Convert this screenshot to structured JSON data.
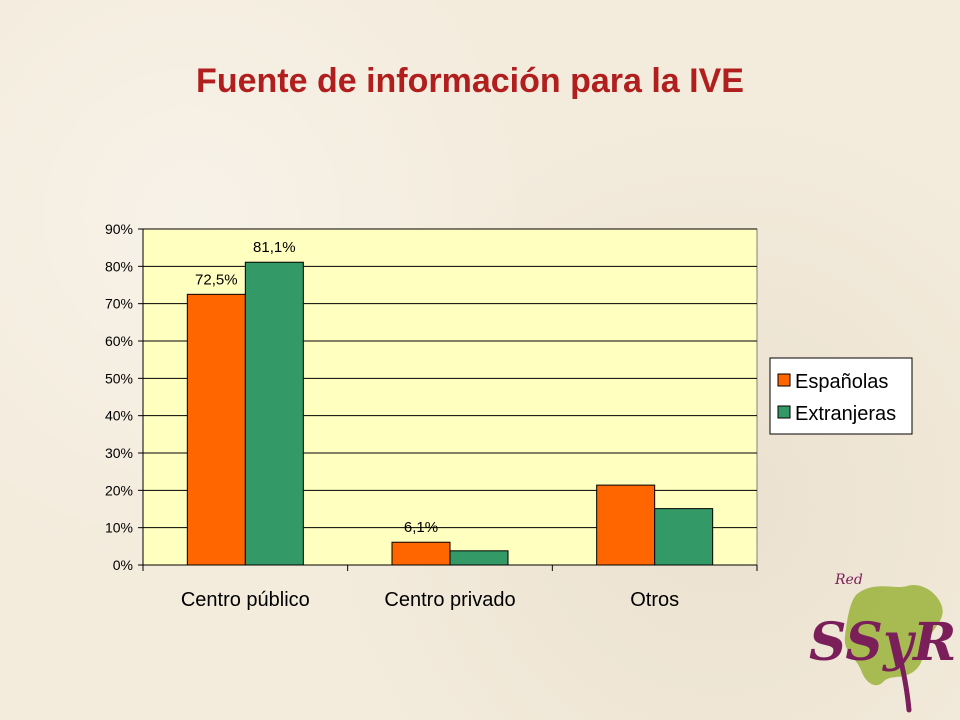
{
  "slide": {
    "title": "Fuente de información para la IVE"
  },
  "logo": {
    "label_small": "Red",
    "label_main": "SSyR",
    "colors": {
      "purple": "#7a1f5a",
      "green": "#9ab33b"
    }
  },
  "chart_data": {
    "type": "bar",
    "title": "",
    "xlabel": "",
    "ylabel": "",
    "categories": [
      "Centro público",
      "Centro privado",
      "Otros"
    ],
    "series": [
      {
        "name": "Españolas",
        "color": "#ff6600",
        "values": [
          72.5,
          6.1,
          21.4
        ],
        "labels": [
          "72,5%",
          "6,1%",
          ""
        ]
      },
      {
        "name": "Extranjeras",
        "color": "#339966",
        "values": [
          81.1,
          3.8,
          15.1
        ],
        "labels": [
          "81,1%",
          "",
          ""
        ]
      }
    ],
    "ylim": [
      0,
      90
    ],
    "yticks": [
      0,
      10,
      20,
      30,
      40,
      50,
      60,
      70,
      80,
      90
    ],
    "ytick_labels": [
      "0%",
      "10%",
      "20%",
      "30%",
      "40%",
      "50%",
      "60%",
      "70%",
      "80%",
      "90%"
    ],
    "grid": true,
    "plot_background": "#ffffc0",
    "legend_position": "right"
  }
}
